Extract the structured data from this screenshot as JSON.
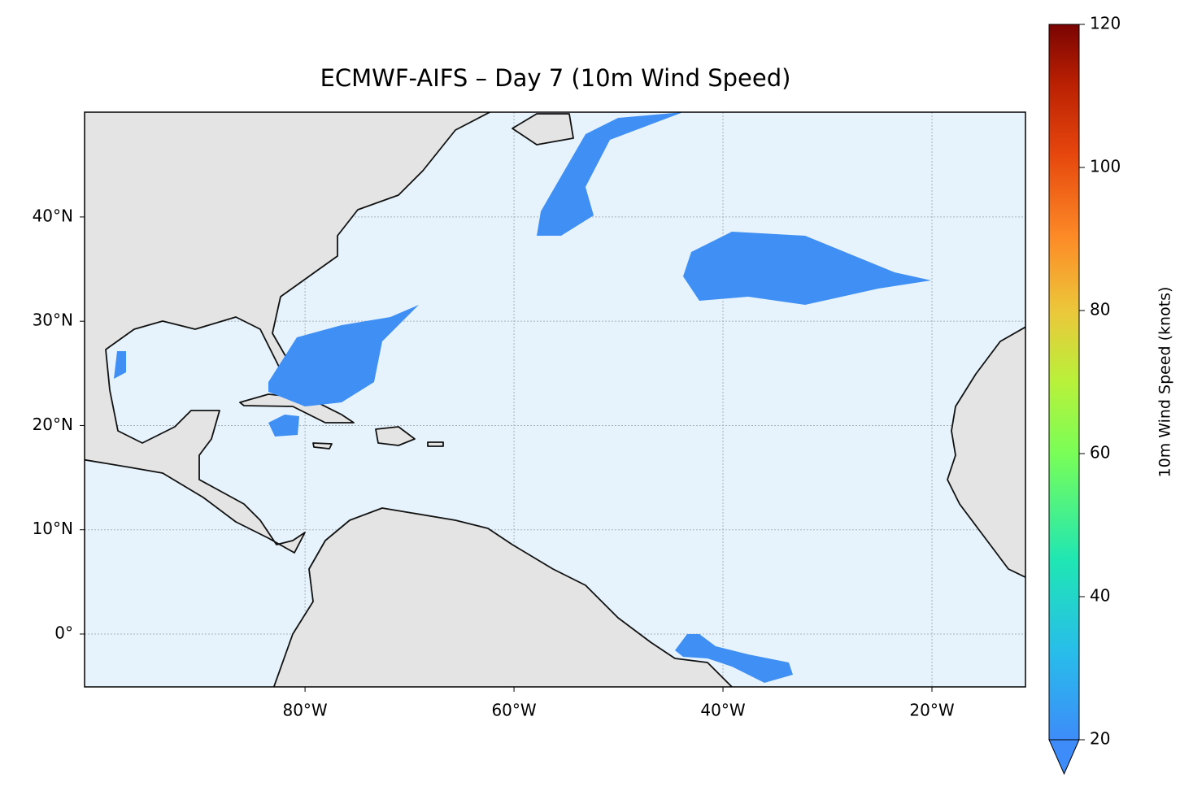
{
  "chart_data": {
    "type": "map",
    "title": "ECMWF-AIFS – Day 7 (10m Wind Speed)",
    "xlim": [
      -101.1,
      -11.05
    ],
    "ylim": [
      -5.07,
      50.05
    ],
    "xticks": [
      {
        "value": -80,
        "label": "80°W"
      },
      {
        "value": -60,
        "label": "60°W"
      },
      {
        "value": -40,
        "label": "40°W"
      },
      {
        "value": -20,
        "label": "20°W"
      }
    ],
    "yticks": [
      {
        "value": 0,
        "label": "0°"
      },
      {
        "value": 10,
        "label": "10°N"
      },
      {
        "value": 20,
        "label": "20°N"
      },
      {
        "value": 30,
        "label": "30°N"
      },
      {
        "value": 40,
        "label": "40°N"
      }
    ],
    "grid": true,
    "colorbar": {
      "label": "10m Wind Speed (knots)",
      "lim": [
        20,
        120
      ],
      "ticks": [
        20,
        40,
        60,
        80,
        100,
        120
      ]
    }
  }
}
